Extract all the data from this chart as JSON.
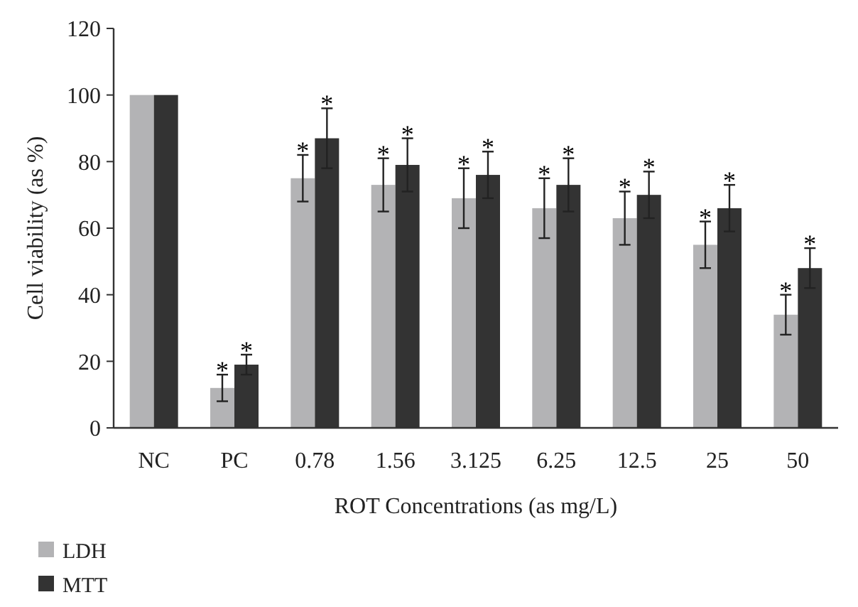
{
  "chart_data": {
    "type": "bar",
    "xlabel": "ROT Concentrations (as mg/L)",
    "ylabel": "Cell viability (as %)",
    "categories": [
      "NC",
      "PC",
      "0.78",
      "1.56",
      "3.125",
      "6.25",
      "12.5",
      "25",
      "50"
    ],
    "series": [
      {
        "name": "LDH",
        "color": "#b3b3b5",
        "values": [
          100,
          12,
          75,
          73,
          69,
          66,
          63,
          55,
          34
        ],
        "errors": [
          null,
          4,
          7,
          8,
          9,
          9,
          8,
          7,
          6
        ]
      },
      {
        "name": "MTT",
        "color": "#333333",
        "values": [
          100,
          19,
          87,
          79,
          76,
          73,
          70,
          66,
          48
        ],
        "errors": [
          null,
          3,
          9,
          8,
          7,
          8,
          7,
          7,
          6
        ]
      }
    ],
    "ylim": [
      0,
      120
    ],
    "yticks": [
      0,
      20,
      40,
      60,
      80,
      100,
      120
    ],
    "grid": false,
    "legend": "bottom left",
    "annotations": [
      {
        "text": "*",
        "x": "PC",
        "y": 12
      },
      {
        "text": "*",
        "x": "PC",
        "y": 19
      },
      {
        "text": "*",
        "x": "0.78",
        "y": 75
      },
      {
        "text": "*",
        "x": "0.78",
        "y": 87
      },
      {
        "text": "*",
        "x": "1.56",
        "y": 73
      },
      {
        "text": "*",
        "x": "1.56",
        "y": 79
      },
      {
        "text": "*",
        "x": "3.125",
        "y": 69
      },
      {
        "text": "*",
        "x": "3.125",
        "y": 76
      },
      {
        "text": "*",
        "x": "6.25",
        "y": 66
      },
      {
        "text": "*",
        "x": "6.25",
        "y": 73
      },
      {
        "text": "*",
        "x": "12.5",
        "y": 63
      },
      {
        "text": "*",
        "x": "12.5",
        "y": 70
      },
      {
        "text": "*",
        "x": "25",
        "y": 55
      },
      {
        "text": "*",
        "x": "25",
        "y": 66
      },
      {
        "text": "*",
        "x": "50",
        "y": 34
      },
      {
        "text": "*",
        "x": "50",
        "y": 48
      }
    ]
  }
}
